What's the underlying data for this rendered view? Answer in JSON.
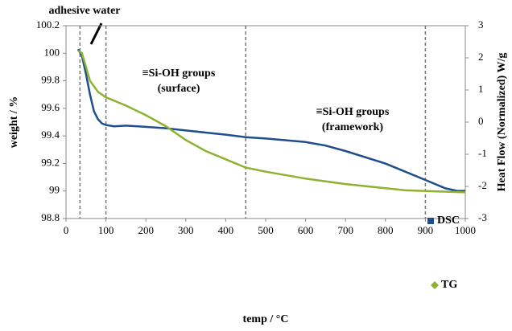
{
  "chart_data": {
    "type": "line",
    "x_label": "temp / °C",
    "y_label": "weight / %",
    "y2_label": "Heat Flow (Normalized) W/g",
    "xlim": [
      0,
      1000
    ],
    "xticks": [
      0,
      100,
      200,
      300,
      400,
      500,
      600,
      700,
      800,
      900,
      1000
    ],
    "ylim": [
      98.8,
      100.2
    ],
    "yticks": [
      98.8,
      99,
      99.2,
      99.4,
      99.6,
      99.8,
      100,
      100.2
    ],
    "y2lim": [
      -3,
      3
    ],
    "y2ticks": [
      -3,
      -2,
      -1,
      0,
      1,
      2,
      3
    ],
    "vlines": [
      35,
      100,
      450,
      900
    ],
    "annotations": [
      [
        "adhesive water"
      ],
      [
        "≡Si-OH groups",
        "(surface)"
      ],
      [
        "≡Si-OH groups",
        "(framework)"
      ]
    ],
    "series": [
      {
        "name": "DSC",
        "color": "#1f4e8c",
        "axis": "y2",
        "x": [
          30,
          40,
          50,
          60,
          70,
          80,
          90,
          100,
          120,
          150,
          180,
          250,
          300,
          400,
          450,
          500,
          600,
          650,
          700,
          800,
          900,
          950,
          980,
          1000
        ],
        "values": [
          2.27,
          2.06,
          1.5,
          0.86,
          0.34,
          0.09,
          -0.04,
          -0.09,
          -0.13,
          -0.11,
          -0.13,
          -0.19,
          -0.26,
          -0.39,
          -0.47,
          -0.51,
          -0.62,
          -0.73,
          -0.9,
          -1.29,
          -1.8,
          -2.06,
          -2.14,
          -2.14
        ]
      },
      {
        "name": "TG",
        "color": "#8db230",
        "x": [
          30,
          40,
          50,
          60,
          80,
          100,
          150,
          200,
          250,
          300,
          350,
          400,
          450,
          500,
          600,
          700,
          800,
          850,
          900,
          1000
        ],
        "values": [
          100.02,
          100.0,
          99.9,
          99.8,
          99.72,
          99.68,
          99.62,
          99.55,
          99.47,
          99.37,
          99.29,
          99.23,
          99.17,
          99.14,
          99.09,
          99.05,
          99.02,
          99.005,
          99.0,
          98.99
        ]
      }
    ]
  }
}
